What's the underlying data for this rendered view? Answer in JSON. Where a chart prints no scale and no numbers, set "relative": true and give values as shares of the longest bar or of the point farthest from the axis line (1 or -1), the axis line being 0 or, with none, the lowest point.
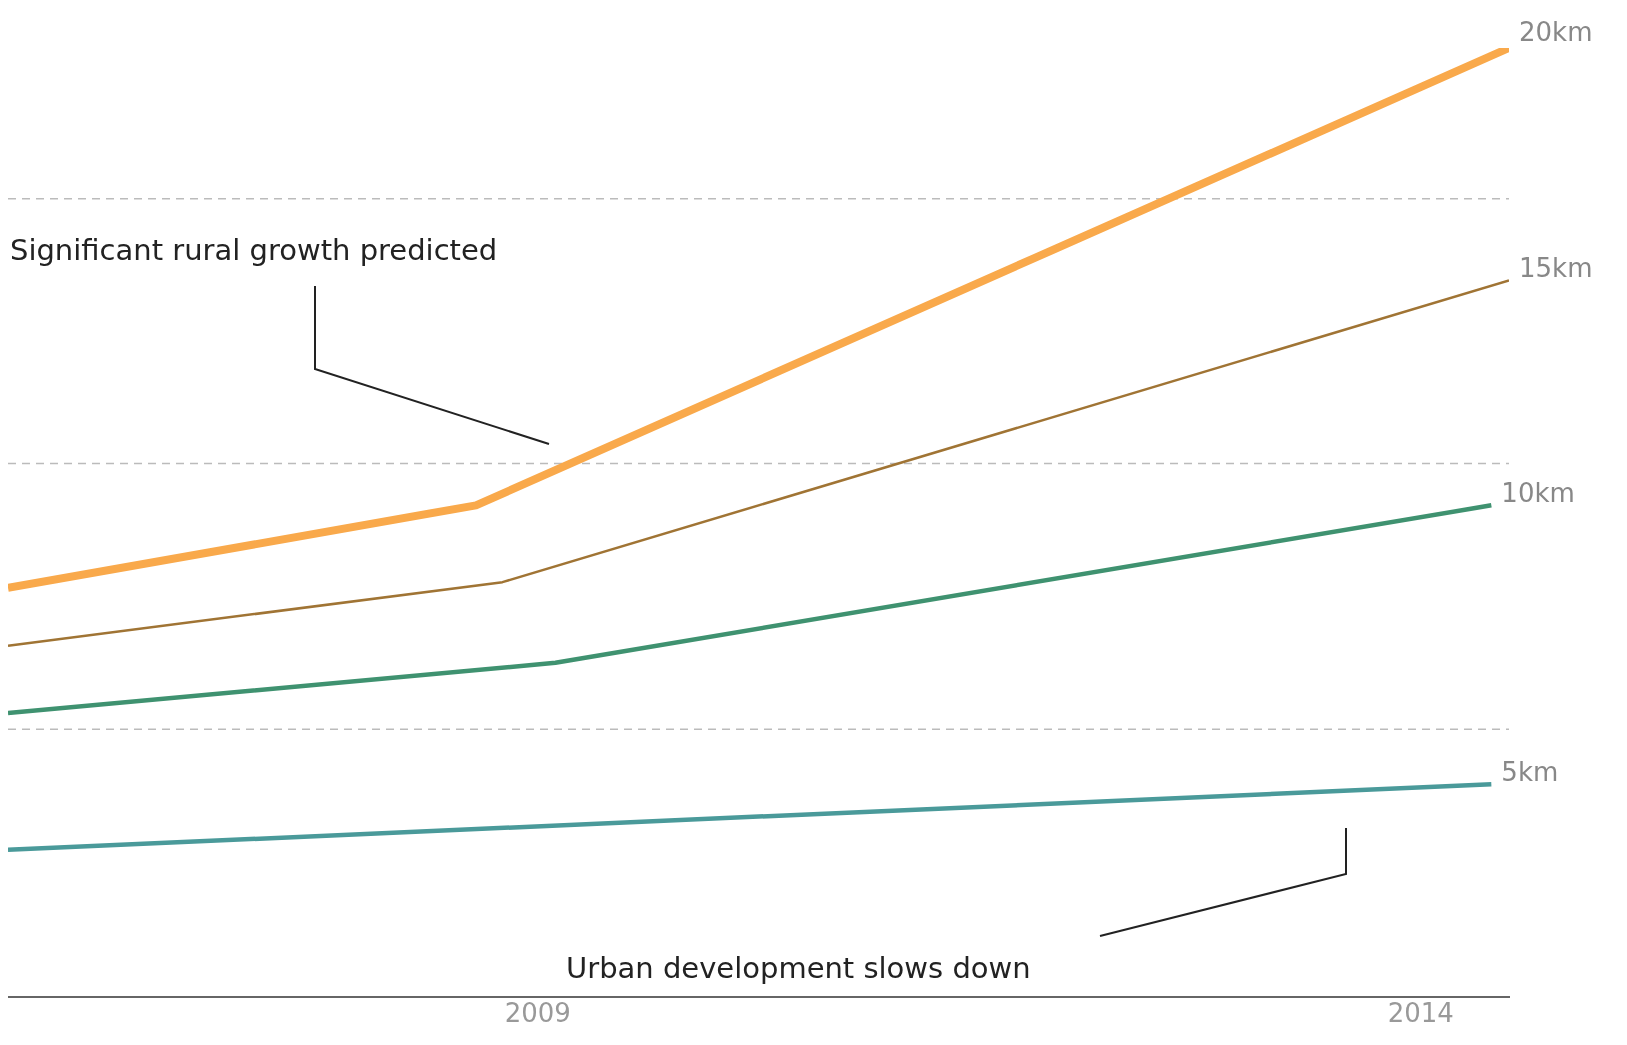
{
  "chart_data": {
    "type": "line",
    "relative": true,
    "xlim": [
      2006,
      2014.5
    ],
    "xticks": [
      2009,
      2014
    ],
    "legend": false,
    "grid": false,
    "marker": "none",
    "line_style": "solid",
    "series": [
      {
        "name": "20km",
        "color": "#f9a94b",
        "x": [
          2006,
          2008.65,
          2014.5
        ],
        "values": [
          0.431,
          0.518,
          1
        ]
      },
      {
        "name": "15km",
        "color": "#a07434",
        "x": [
          2006,
          2008.8,
          2014.5
        ],
        "values": [
          0.37,
          0.437,
          0.755
        ]
      },
      {
        "name": "10km",
        "color": "#3f9270",
        "x": [
          2006,
          2009.1,
          2014.4
        ],
        "values": [
          0.299,
          0.352,
          0.518
        ]
      },
      {
        "name": "5km",
        "color": "#4a9a9a",
        "x": [
          2006,
          2014.4
        ],
        "values": [
          0.155,
          0.224
        ]
      }
    ],
    "ref_lines": [
      {
        "axis": "y",
        "value": 0.841,
        "color": "#bbbbbb",
        "line_style": "dashed"
      },
      {
        "axis": "y",
        "value": 0.562,
        "color": "#bbbbbb",
        "line_style": "dashed"
      },
      {
        "axis": "y",
        "value": 0.282,
        "color": "#bbbbbb",
        "line_style": "dashed"
      }
    ],
    "annotations": [
      "Significant rural growth predicted",
      "Urban development slows down"
    ]
  }
}
